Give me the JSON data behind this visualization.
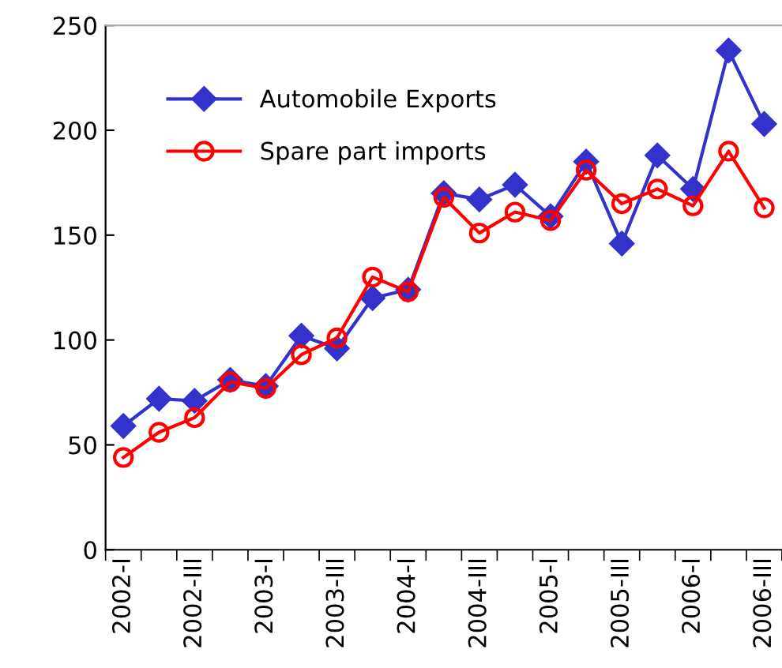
{
  "chart_data": {
    "type": "line",
    "categories": [
      "2002-I",
      null,
      "2002-III",
      null,
      "2003-I",
      null,
      "2003-III",
      null,
      "2004-I",
      null,
      "2004-III",
      null,
      "2005-I",
      null,
      "2005-III",
      null,
      "2006-I",
      null,
      "2006-III"
    ],
    "series": [
      {
        "name": "Automobile Exports",
        "color": "#3333cc",
        "marker": "diamond",
        "values": [
          59,
          72,
          71,
          81,
          78,
          102,
          96,
          120,
          124,
          170,
          167,
          174,
          159,
          185,
          146,
          188,
          172,
          238,
          203
        ]
      },
      {
        "name": "Spare part imports",
        "color": "#ff0000",
        "marker": "circle",
        "values": [
          44,
          56,
          63,
          80,
          77,
          93,
          101,
          130,
          123,
          168,
          151,
          161,
          157,
          181,
          165,
          172,
          164,
          190,
          163
        ]
      }
    ],
    "ylim": [
      0,
      250
    ],
    "yticks": [
      0,
      50,
      100,
      150,
      200,
      250
    ],
    "grid": false,
    "legend": "top left",
    "line_style": "solid"
  }
}
